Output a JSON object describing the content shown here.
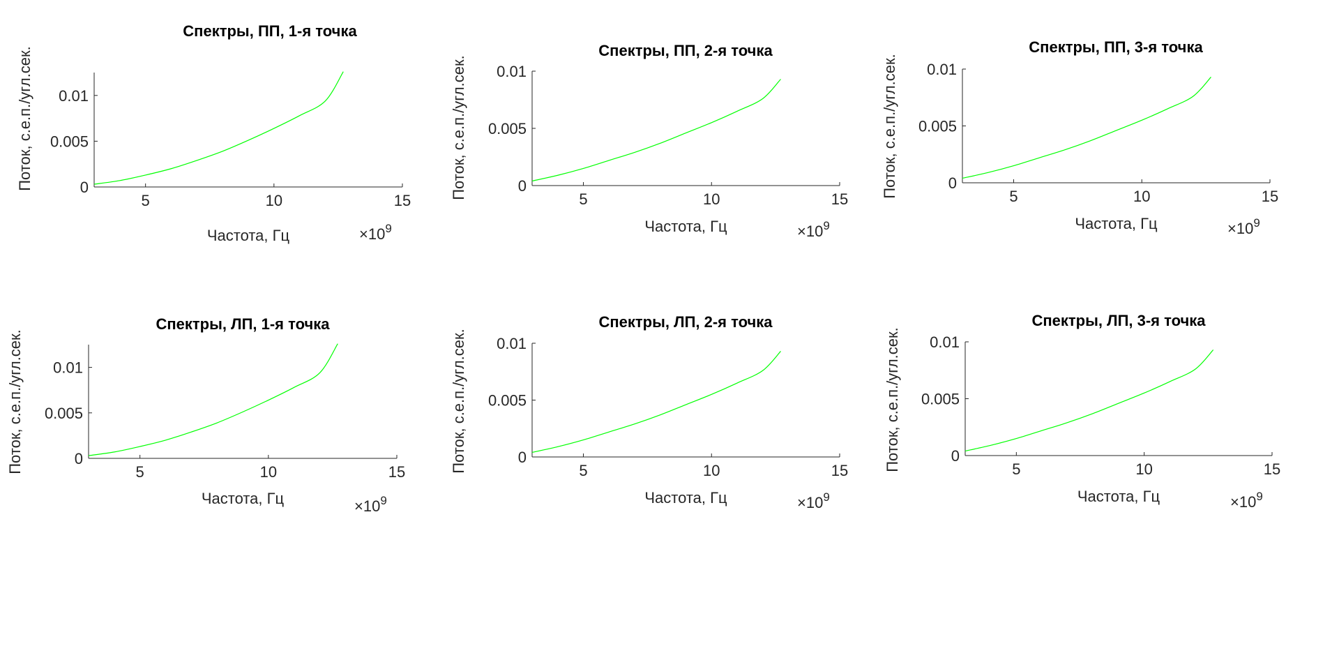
{
  "chart_data": [
    {
      "type": "line",
      "title": "Спектры, ПП, 1-я точка",
      "xlabel": "Частота, Гц",
      "ylabel": "Поток, с.е.п./угл.сек.",
      "x_exponent_label": "×10",
      "x_exponent_power": "9",
      "xlim": [
        3,
        15
      ],
      "ylim": [
        0,
        0.0125
      ],
      "xticks": [
        5,
        10,
        15
      ],
      "xtick_labels": [
        "5",
        "10",
        "15"
      ],
      "yticks": [
        0,
        0.005,
        0.01
      ],
      "ytick_labels": [
        "0",
        "0.005",
        "0.01"
      ],
      "grid": false,
      "legend": "none",
      "series": [
        {
          "color": "#00ff00",
          "x": [
            3,
            4,
            5,
            6,
            7,
            8,
            9,
            10,
            11,
            12,
            12.7
          ],
          "y": [
            0.0003,
            0.0007,
            0.0013,
            0.002,
            0.0029,
            0.0039,
            0.0051,
            0.0064,
            0.0078,
            0.0094,
            0.0126
          ]
        }
      ]
    },
    {
      "type": "line",
      "title": "Спектры, ПП, 2-я точка",
      "xlabel": "Частота, Гц",
      "ylabel": "Поток, с.е.п./угл.сек.",
      "x_exponent_label": "×10",
      "x_exponent_power": "9",
      "xlim": [
        3,
        15
      ],
      "ylim": [
        0,
        0.01
      ],
      "xticks": [
        5,
        10,
        15
      ],
      "xtick_labels": [
        "5",
        "10",
        "15"
      ],
      "yticks": [
        0,
        0.005,
        0.01
      ],
      "ytick_labels": [
        "0",
        "0.005",
        "0.01"
      ],
      "grid": false,
      "legend": "none",
      "series": [
        {
          "color": "#00ff00",
          "x": [
            3,
            4,
            5,
            6,
            7,
            8,
            9,
            10,
            11,
            12,
            12.7
          ],
          "y": [
            0.0004,
            0.0009,
            0.0015,
            0.0022,
            0.0029,
            0.0037,
            0.0046,
            0.0055,
            0.0065,
            0.0076,
            0.0093
          ]
        }
      ]
    },
    {
      "type": "line",
      "title": "Спектры, ПП, 3-я точка",
      "xlabel": "Частота, Гц",
      "ylabel": "Поток, с.е.п./угл.сек.",
      "x_exponent_label": "×10",
      "x_exponent_power": "9",
      "xlim": [
        3,
        15
      ],
      "ylim": [
        0,
        0.01
      ],
      "xticks": [
        5,
        10,
        15
      ],
      "xtick_labels": [
        "5",
        "10",
        "15"
      ],
      "yticks": [
        0,
        0.005,
        0.01
      ],
      "ytick_labels": [
        "0",
        "0.005",
        "0.01"
      ],
      "grid": false,
      "legend": "none",
      "series": [
        {
          "color": "#00ff00",
          "x": [
            3,
            4,
            5,
            6,
            7,
            8,
            9,
            10,
            11,
            12,
            12.7
          ],
          "y": [
            0.0004,
            0.0009,
            0.0015,
            0.0022,
            0.0029,
            0.0037,
            0.0046,
            0.0055,
            0.0065,
            0.0076,
            0.0093
          ]
        }
      ]
    },
    {
      "type": "line",
      "title": "Спектры, ЛП, 1-я точка",
      "xlabel": "Частота, Гц",
      "ylabel": "Поток, с.е.п./угл.сек.",
      "x_exponent_label": "×10",
      "x_exponent_power": "9",
      "xlim": [
        3,
        15
      ],
      "ylim": [
        0,
        0.0125
      ],
      "xticks": [
        5,
        10,
        15
      ],
      "xtick_labels": [
        "5",
        "10",
        "15"
      ],
      "yticks": [
        0,
        0.005,
        0.01
      ],
      "ytick_labels": [
        "0",
        "0.005",
        "0.01"
      ],
      "grid": false,
      "legend": "none",
      "series": [
        {
          "color": "#00ff00",
          "x": [
            3,
            4,
            5,
            6,
            7,
            8,
            9,
            10,
            11,
            12,
            12.7
          ],
          "y": [
            0.0003,
            0.0007,
            0.0013,
            0.002,
            0.0029,
            0.0039,
            0.0051,
            0.0064,
            0.0078,
            0.0094,
            0.0126
          ]
        }
      ]
    },
    {
      "type": "line",
      "title": "Спектры, ЛП, 2-я точка",
      "xlabel": "Частота, Гц",
      "ylabel": "Поток, с.е.п./угл.сек.",
      "x_exponent_label": "×10",
      "x_exponent_power": "9",
      "xlim": [
        3,
        15
      ],
      "ylim": [
        0,
        0.01
      ],
      "xticks": [
        5,
        10,
        15
      ],
      "xtick_labels": [
        "5",
        "10",
        "15"
      ],
      "yticks": [
        0,
        0.005,
        0.01
      ],
      "ytick_labels": [
        "0",
        "0.005",
        "0.01"
      ],
      "grid": false,
      "legend": "none",
      "series": [
        {
          "color": "#00ff00",
          "x": [
            3,
            4,
            5,
            6,
            7,
            8,
            9,
            10,
            11,
            12,
            12.7
          ],
          "y": [
            0.0004,
            0.0009,
            0.0015,
            0.0022,
            0.0029,
            0.0037,
            0.0046,
            0.0055,
            0.0065,
            0.0076,
            0.0093
          ]
        }
      ]
    },
    {
      "type": "line",
      "title": "Спектры, ЛП, 3-я точка",
      "xlabel": "Частота, Гц",
      "ylabel": "Поток, с.е.п./угл.сек.",
      "x_exponent_label": "×10",
      "x_exponent_power": "9",
      "xlim": [
        3,
        15
      ],
      "ylim": [
        0,
        0.01
      ],
      "xticks": [
        5,
        10,
        15
      ],
      "xtick_labels": [
        "5",
        "10",
        "15"
      ],
      "yticks": [
        0,
        0.005,
        0.01
      ],
      "ytick_labels": [
        "0",
        "0.005",
        "0.01"
      ],
      "grid": false,
      "legend": "none",
      "series": [
        {
          "color": "#00ff00",
          "x": [
            3,
            4,
            5,
            6,
            7,
            8,
            9,
            10,
            11,
            12,
            12.7
          ],
          "y": [
            0.0004,
            0.0009,
            0.0015,
            0.0022,
            0.0029,
            0.0037,
            0.0046,
            0.0055,
            0.0065,
            0.0076,
            0.0093
          ]
        }
      ]
    }
  ]
}
